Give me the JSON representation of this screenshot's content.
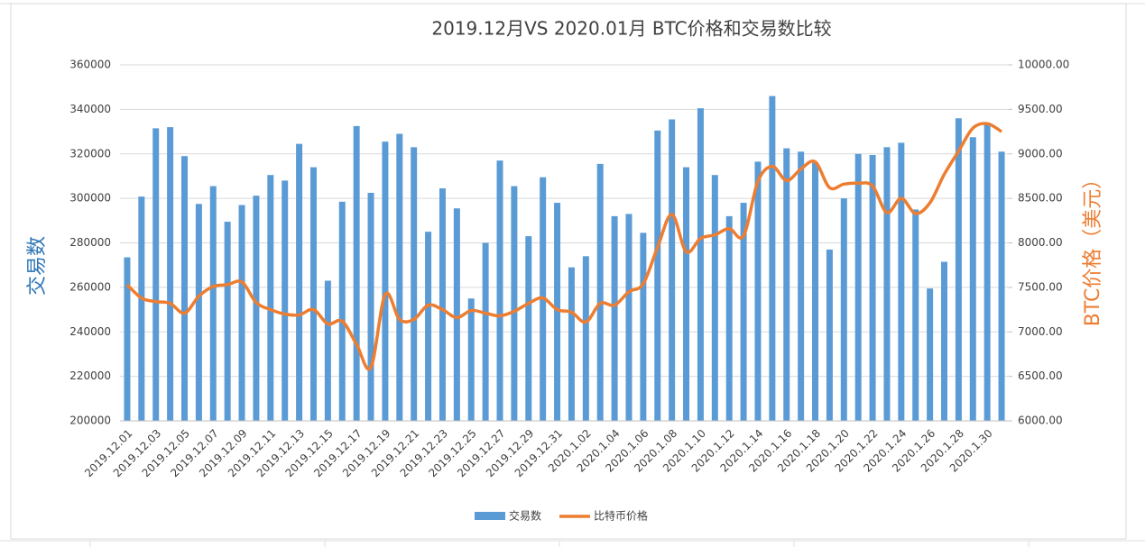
{
  "chart_data": {
    "type": "bar_line",
    "title": "2019.12月VS 2020.01月 BTC价格和交易数比较",
    "y_label": "交易数",
    "y2_label": "BTC价格（美元）",
    "categories": [
      "2019.12.01",
      null,
      "2019.12.03",
      null,
      "2019.12.05",
      null,
      "2019.12.07",
      null,
      "2019.12.09",
      null,
      "2019.12.11",
      null,
      "2019.12.13",
      null,
      "2019.12.15",
      null,
      "2019.12.17",
      null,
      "2019.12.19",
      null,
      "2019.12.21",
      null,
      "2019.12.23",
      null,
      "2019.12.25",
      null,
      "2019.12.27",
      null,
      "2019.12.29",
      null,
      "2019.12.31",
      null,
      "2020.1.02",
      null,
      "2020.1.04",
      null,
      "2020.1.06",
      null,
      "2020.1.08",
      null,
      "2020.1.10",
      null,
      "2020.1.12",
      null,
      "2020.1.14",
      null,
      "2020.1.16",
      null,
      "2020.1.18",
      null,
      "2020.1.20",
      null,
      "2020.1.22",
      null,
      "2020.1.24",
      null,
      "2020.1.26",
      null,
      "2020.1.28",
      null,
      "2020.1.30",
      null
    ],
    "series": [
      {
        "name": "交易数",
        "type": "bar",
        "color": "#5b9bd5",
        "values": [
          273500,
          300800,
          331500,
          332000,
          319000,
          297500,
          305500,
          289500,
          297000,
          301200,
          310500,
          308000,
          324500,
          314000,
          263000,
          298500,
          332500,
          302500,
          325500,
          329000,
          323000,
          285000,
          304500,
          295500,
          255000,
          280000,
          317000,
          305500,
          283000,
          309500,
          298000,
          269000,
          274000,
          315500,
          292000,
          293000,
          284500,
          330500,
          335500,
          314000,
          340500,
          310500,
          292000,
          298000,
          316500,
          346000,
          322500,
          321000,
          316000,
          277000,
          300000,
          320000,
          319500,
          323000,
          325000,
          295000,
          259500,
          271500,
          336000,
          327500,
          334000,
          321000
        ]
      },
      {
        "name": "比特币价格",
        "type": "line",
        "axis": "y2",
        "color": "#ed7d31",
        "values": [
          7530,
          7380,
          7340,
          7320,
          7210,
          7400,
          7510,
          7530,
          7560,
          7330,
          7250,
          7200,
          7190,
          7250,
          7090,
          7120,
          6860,
          6600,
          7420,
          7140,
          7140,
          7300,
          7250,
          7160,
          7240,
          7210,
          7180,
          7230,
          7320,
          7380,
          7250,
          7220,
          7110,
          7320,
          7300,
          7450,
          7540,
          7950,
          8320,
          7900,
          8050,
          8090,
          8160,
          8080,
          8690,
          8860,
          8700,
          8830,
          8910,
          8620,
          8660,
          8670,
          8640,
          8340,
          8500,
          8330,
          8450,
          8770,
          9030,
          9290,
          9340,
          9250
        ]
      }
    ],
    "ylim": [
      200000,
      360000
    ],
    "yticks": [
      200000,
      220000,
      240000,
      260000,
      280000,
      300000,
      320000,
      340000,
      360000
    ],
    "y2lim": [
      6000,
      10000
    ],
    "y2ticks": [
      {
        "value": 6000,
        "label": "6000.00"
      },
      {
        "value": 6500,
        "label": "6500.00"
      },
      {
        "value": 7000,
        "label": "7000.00"
      },
      {
        "value": 7500,
        "label": "7500.00"
      },
      {
        "value": 8000,
        "label": "8000.00"
      },
      {
        "value": 8500,
        "label": "8500.00"
      },
      {
        "value": 9000,
        "label": "9000.00"
      },
      {
        "value": 9500,
        "label": "9500.00"
      },
      {
        "value": 10000,
        "label": "10000.00"
      }
    ],
    "legend": "bottom"
  }
}
